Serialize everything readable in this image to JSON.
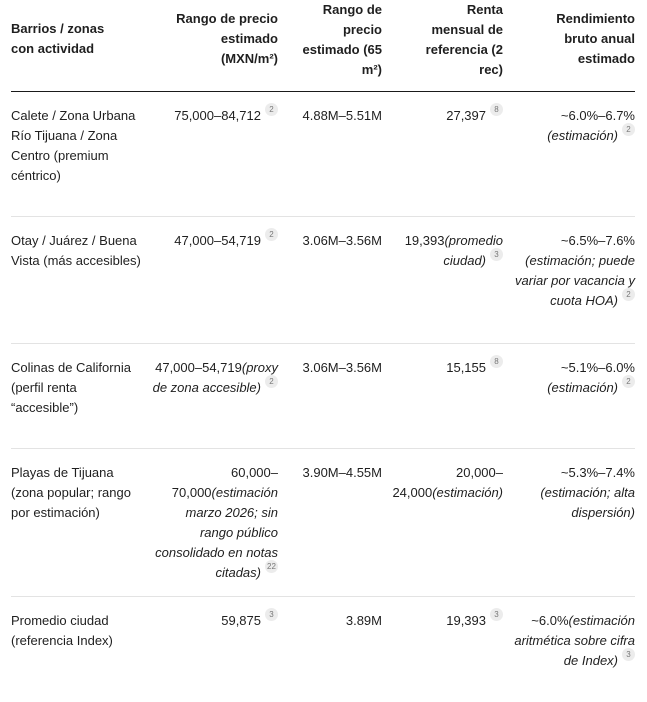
{
  "headers": [
    "Barrios / zonas con actividad",
    "Rango de precio estimado (MXN/m²)",
    "Rango de precio estimado (65 m²)",
    "Renta mensual de referencia (2 rec)",
    "Rendimiento bruto anual estimado"
  ],
  "rows": [
    {
      "zone": "Calete / Zona Urbana Río Tijuana / Zona Centro (premium céntrico)",
      "price_m2": "75,000–84,712",
      "price_m2_note": "",
      "price_m2_cite": "2",
      "price_65": "4.88M–5.51M",
      "rent": "27,397",
      "rent_note": "",
      "rent_cite": "8",
      "yield": "~6.0%–6.7%",
      "yield_note": "(estimación)",
      "yield_cite": "2"
    },
    {
      "zone": "Otay / Juárez / Buena Vista (más accesibles)",
      "price_m2": "47,000–54,719",
      "price_m2_note": "",
      "price_m2_cite": "2",
      "price_65": "3.06M–3.56M",
      "rent": "19,393",
      "rent_note": "(promedio ciudad)",
      "rent_cite": "3",
      "yield": "~6.5%–7.6%",
      "yield_note": "(estimación; puede variar por vacancia y cuota HOA)",
      "yield_cite": "2"
    },
    {
      "zone": "Colinas de California (perfil renta “accesible”)",
      "price_m2": "47,000–54,719",
      "price_m2_note": "(proxy de zona accesible)",
      "price_m2_cite": "2",
      "price_65": "3.06M–3.56M",
      "rent": "15,155",
      "rent_note": "",
      "rent_cite": "8",
      "yield": "~5.1%–6.0%",
      "yield_note": "(estimación)",
      "yield_cite": "2"
    },
    {
      "zone": "Playas de Tijuana (zona popular; rango por estimación)",
      "price_m2": "60,000–70,000",
      "price_m2_note": "(estimación marzo 2026; sin rango público consolidado en notas citadas)",
      "price_m2_cite": "22",
      "price_65": "3.90M–4.55M",
      "rent": "20,000–24,000",
      "rent_note": "(estimación)",
      "rent_cite": "",
      "yield": "~5.3%–7.4%",
      "yield_note": "(estimación; alta dispersión)",
      "yield_cite": ""
    },
    {
      "zone": "Promedio ciudad (referencia Index)",
      "price_m2": "59,875",
      "price_m2_note": "",
      "price_m2_cite": "3",
      "price_65": "3.89M",
      "rent": "19,393",
      "rent_note": "",
      "rent_cite": "3",
      "yield": "~6.0%",
      "yield_note": "(estimación aritmética sobre cifra de Index)",
      "yield_cite": "3"
    }
  ]
}
